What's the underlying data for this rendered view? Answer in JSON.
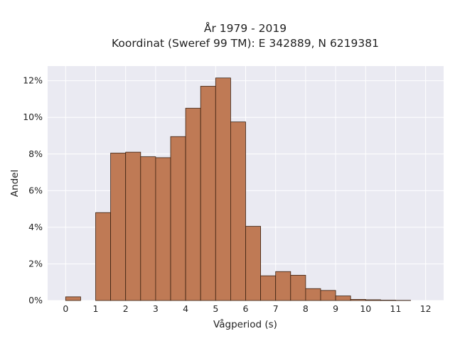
{
  "chart_data": {
    "type": "bar",
    "title": "År 1979 - 2019",
    "subtitle": "Koordinat (Sweref 99 TM): E 342889, N 6219381",
    "xlabel": "Vågperiod (s)",
    "ylabel": "Andel",
    "bin_width": 0.5,
    "bins": [
      {
        "x": 0.0,
        "value": 0.2
      },
      {
        "x": 1.0,
        "value": 4.8
      },
      {
        "x": 1.5,
        "value": 8.05
      },
      {
        "x": 2.0,
        "value": 8.1
      },
      {
        "x": 2.5,
        "value": 7.85
      },
      {
        "x": 3.0,
        "value": 7.8
      },
      {
        "x": 3.5,
        "value": 8.95
      },
      {
        "x": 4.0,
        "value": 10.5
      },
      {
        "x": 4.5,
        "value": 11.7
      },
      {
        "x": 5.0,
        "value": 12.15
      },
      {
        "x": 5.5,
        "value": 9.75
      },
      {
        "x": 6.0,
        "value": 4.05
      },
      {
        "x": 6.5,
        "value": 1.35
      },
      {
        "x": 7.0,
        "value": 1.58
      },
      {
        "x": 7.5,
        "value": 1.38
      },
      {
        "x": 8.0,
        "value": 0.65
      },
      {
        "x": 8.5,
        "value": 0.55
      },
      {
        "x": 9.0,
        "value": 0.25
      },
      {
        "x": 9.5,
        "value": 0.06
      },
      {
        "x": 10.0,
        "value": 0.04
      },
      {
        "x": 10.5,
        "value": 0.02
      },
      {
        "x": 11.0,
        "value": 0.01
      }
    ],
    "xlim": [
      -0.6,
      12.6
    ],
    "ylim": [
      0,
      12.8
    ],
    "xticks": [
      0,
      1,
      2,
      3,
      4,
      5,
      6,
      7,
      8,
      9,
      10,
      11,
      12
    ],
    "yticks": [
      0,
      2,
      4,
      6,
      8,
      10,
      12
    ],
    "ytick_labels": [
      "0%",
      "2%",
      "4%",
      "6%",
      "8%",
      "10%",
      "12%"
    ],
    "grid": true,
    "colors": {
      "bar_fill": "#bf7a55",
      "bar_edge": "#3a2010",
      "plot_bg": "#eaeaf2",
      "grid": "#ffffff"
    }
  }
}
